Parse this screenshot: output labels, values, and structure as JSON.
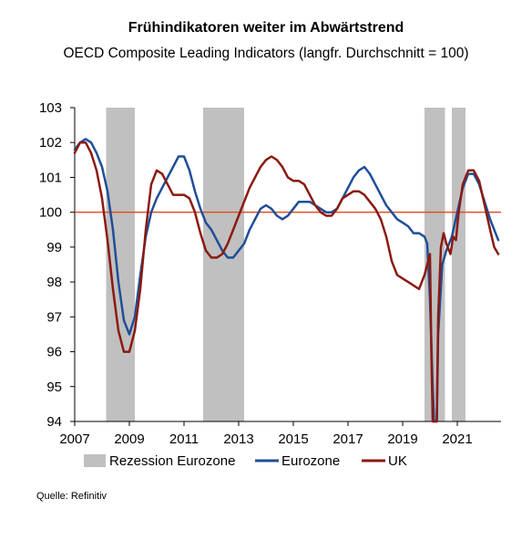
{
  "chart_data": {
    "type": "line",
    "title": "Frühindikatoren weiter im Abwärtstrend",
    "subtitle": "OECD Composite Leading Indicators (langfr. Durchschnitt = 100)",
    "xlabel": "",
    "ylabel": "",
    "xlim": [
      2007.0,
      2022.6
    ],
    "ylim": [
      94,
      103
    ],
    "x_ticks": [
      "2007",
      "2009",
      "2011",
      "2013",
      "2015",
      "2017",
      "2019",
      "2021"
    ],
    "y_ticks": [
      "94",
      "95",
      "96",
      "97",
      "98",
      "99",
      "100",
      "101",
      "102",
      "103"
    ],
    "reference_line": {
      "y": 100,
      "color": "#e0502a"
    },
    "grid": false,
    "legend": {
      "position": "bottom",
      "labels": [
        "Rezession Eurozone",
        "Eurozone",
        "UK"
      ]
    },
    "recessions": [
      {
        "start": 2008.15,
        "end": 2009.2
      },
      {
        "start": 2011.7,
        "end": 2013.2
      },
      {
        "start": 2019.8,
        "end": 2020.55
      },
      {
        "start": 2020.8,
        "end": 2021.3
      }
    ],
    "series": [
      {
        "name": "Eurozone",
        "color": "#1f4e99",
        "points": [
          [
            2007.0,
            101.8
          ],
          [
            2007.2,
            102.0
          ],
          [
            2007.4,
            102.1
          ],
          [
            2007.6,
            102.0
          ],
          [
            2007.8,
            101.7
          ],
          [
            2008.0,
            101.3
          ],
          [
            2008.2,
            100.6
          ],
          [
            2008.4,
            99.5
          ],
          [
            2008.6,
            98.0
          ],
          [
            2008.8,
            96.9
          ],
          [
            2009.0,
            96.5
          ],
          [
            2009.2,
            97.0
          ],
          [
            2009.4,
            98.2
          ],
          [
            2009.6,
            99.3
          ],
          [
            2009.8,
            100.0
          ],
          [
            2010.0,
            100.4
          ],
          [
            2010.2,
            100.7
          ],
          [
            2010.4,
            101.0
          ],
          [
            2010.6,
            101.3
          ],
          [
            2010.8,
            101.6
          ],
          [
            2011.0,
            101.6
          ],
          [
            2011.2,
            101.2
          ],
          [
            2011.4,
            100.6
          ],
          [
            2011.6,
            100.1
          ],
          [
            2011.8,
            99.7
          ],
          [
            2012.0,
            99.5
          ],
          [
            2012.2,
            99.2
          ],
          [
            2012.4,
            98.9
          ],
          [
            2012.6,
            98.7
          ],
          [
            2012.8,
            98.7
          ],
          [
            2013.0,
            98.9
          ],
          [
            2013.2,
            99.1
          ],
          [
            2013.4,
            99.5
          ],
          [
            2013.6,
            99.8
          ],
          [
            2013.8,
            100.1
          ],
          [
            2014.0,
            100.2
          ],
          [
            2014.2,
            100.1
          ],
          [
            2014.4,
            99.9
          ],
          [
            2014.6,
            99.8
          ],
          [
            2014.8,
            99.9
          ],
          [
            2015.0,
            100.1
          ],
          [
            2015.2,
            100.3
          ],
          [
            2015.4,
            100.3
          ],
          [
            2015.6,
            100.3
          ],
          [
            2015.8,
            100.2
          ],
          [
            2016.0,
            100.1
          ],
          [
            2016.2,
            100.0
          ],
          [
            2016.4,
            100.0
          ],
          [
            2016.6,
            100.1
          ],
          [
            2016.8,
            100.4
          ],
          [
            2017.0,
            100.7
          ],
          [
            2017.2,
            101.0
          ],
          [
            2017.4,
            101.2
          ],
          [
            2017.6,
            101.3
          ],
          [
            2017.8,
            101.1
          ],
          [
            2018.0,
            100.8
          ],
          [
            2018.2,
            100.5
          ],
          [
            2018.4,
            100.2
          ],
          [
            2018.6,
            100.0
          ],
          [
            2018.8,
            99.8
          ],
          [
            2019.0,
            99.7
          ],
          [
            2019.2,
            99.6
          ],
          [
            2019.4,
            99.4
          ],
          [
            2019.6,
            99.4
          ],
          [
            2019.8,
            99.3
          ],
          [
            2019.9,
            99.1
          ],
          [
            2020.0,
            97.5
          ],
          [
            2020.1,
            95.0
          ],
          [
            2020.15,
            94.0
          ],
          [
            2020.25,
            94.0
          ],
          [
            2020.3,
            96.5
          ],
          [
            2020.45,
            98.5
          ],
          [
            2020.6,
            98.9
          ],
          [
            2020.8,
            99.3
          ],
          [
            2021.0,
            100.0
          ],
          [
            2021.2,
            100.7
          ],
          [
            2021.4,
            101.1
          ],
          [
            2021.6,
            101.1
          ],
          [
            2021.8,
            100.8
          ],
          [
            2022.0,
            100.3
          ],
          [
            2022.2,
            99.8
          ],
          [
            2022.4,
            99.4
          ],
          [
            2022.5,
            99.2
          ]
        ]
      },
      {
        "name": "UK",
        "color": "#8b1a10",
        "points": [
          [
            2007.0,
            101.7
          ],
          [
            2007.2,
            102.0
          ],
          [
            2007.4,
            102.0
          ],
          [
            2007.6,
            101.7
          ],
          [
            2007.8,
            101.2
          ],
          [
            2008.0,
            100.4
          ],
          [
            2008.2,
            99.2
          ],
          [
            2008.4,
            97.8
          ],
          [
            2008.6,
            96.6
          ],
          [
            2008.8,
            96.0
          ],
          [
            2009.0,
            96.0
          ],
          [
            2009.2,
            96.6
          ],
          [
            2009.4,
            97.8
          ],
          [
            2009.6,
            99.5
          ],
          [
            2009.8,
            100.8
          ],
          [
            2010.0,
            101.2
          ],
          [
            2010.2,
            101.1
          ],
          [
            2010.4,
            100.8
          ],
          [
            2010.6,
            100.5
          ],
          [
            2010.8,
            100.5
          ],
          [
            2011.0,
            100.5
          ],
          [
            2011.2,
            100.4
          ],
          [
            2011.4,
            100.0
          ],
          [
            2011.6,
            99.4
          ],
          [
            2011.8,
            98.9
          ],
          [
            2012.0,
            98.7
          ],
          [
            2012.2,
            98.7
          ],
          [
            2012.4,
            98.8
          ],
          [
            2012.6,
            99.1
          ],
          [
            2012.8,
            99.5
          ],
          [
            2013.0,
            99.9
          ],
          [
            2013.2,
            100.3
          ],
          [
            2013.4,
            100.7
          ],
          [
            2013.6,
            101.0
          ],
          [
            2013.8,
            101.3
          ],
          [
            2014.0,
            101.5
          ],
          [
            2014.2,
            101.6
          ],
          [
            2014.4,
            101.5
          ],
          [
            2014.6,
            101.3
          ],
          [
            2014.8,
            101.0
          ],
          [
            2015.0,
            100.9
          ],
          [
            2015.2,
            100.9
          ],
          [
            2015.4,
            100.8
          ],
          [
            2015.6,
            100.5
          ],
          [
            2015.8,
            100.2
          ],
          [
            2016.0,
            100.0
          ],
          [
            2016.2,
            99.9
          ],
          [
            2016.4,
            99.9
          ],
          [
            2016.6,
            100.1
          ],
          [
            2016.8,
            100.4
          ],
          [
            2017.0,
            100.5
          ],
          [
            2017.2,
            100.6
          ],
          [
            2017.4,
            100.6
          ],
          [
            2017.6,
            100.5
          ],
          [
            2017.8,
            100.3
          ],
          [
            2018.0,
            100.1
          ],
          [
            2018.2,
            99.8
          ],
          [
            2018.4,
            99.3
          ],
          [
            2018.6,
            98.6
          ],
          [
            2018.8,
            98.2
          ],
          [
            2019.0,
            98.1
          ],
          [
            2019.2,
            98.0
          ],
          [
            2019.4,
            97.9
          ],
          [
            2019.6,
            97.8
          ],
          [
            2019.8,
            98.2
          ],
          [
            2020.0,
            98.8
          ],
          [
            2020.05,
            96.0
          ],
          [
            2020.1,
            94.0
          ],
          [
            2020.25,
            94.0
          ],
          [
            2020.3,
            97.0
          ],
          [
            2020.4,
            99.0
          ],
          [
            2020.5,
            99.4
          ],
          [
            2020.6,
            99.1
          ],
          [
            2020.75,
            98.8
          ],
          [
            2020.85,
            99.3
          ],
          [
            2020.95,
            99.2
          ],
          [
            2021.05,
            100.0
          ],
          [
            2021.2,
            100.8
          ],
          [
            2021.4,
            101.2
          ],
          [
            2021.6,
            101.2
          ],
          [
            2021.8,
            100.9
          ],
          [
            2022.0,
            100.2
          ],
          [
            2022.2,
            99.5
          ],
          [
            2022.35,
            99.0
          ],
          [
            2022.5,
            98.8
          ]
        ]
      }
    ]
  },
  "source": "Quelle: Refinitiv"
}
